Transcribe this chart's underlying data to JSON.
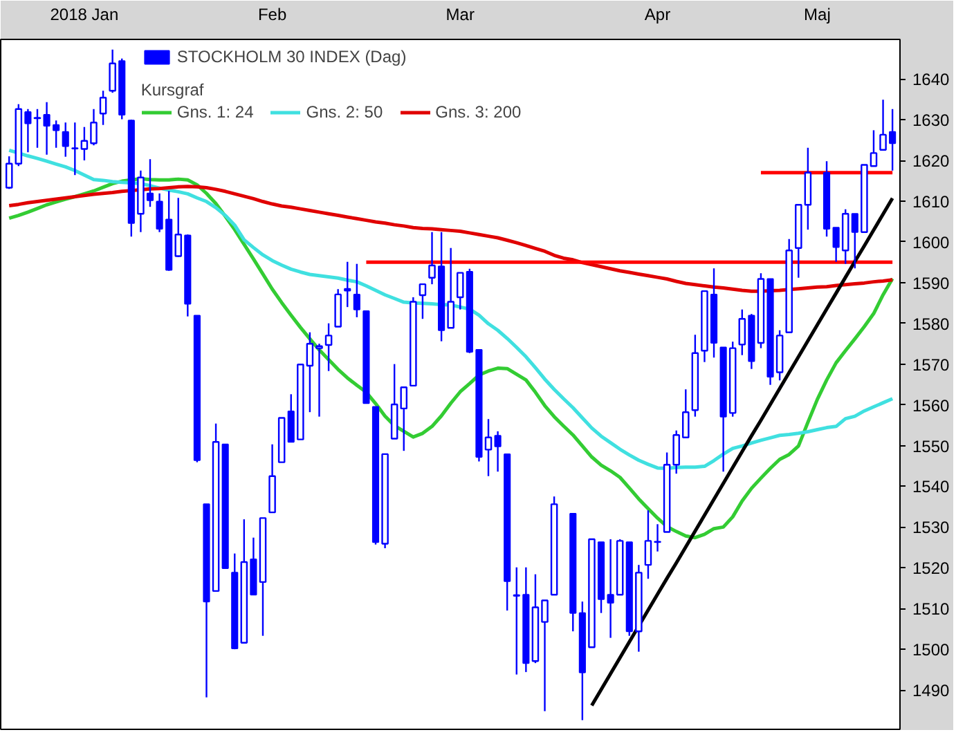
{
  "chart_data": {
    "type": "candlestick",
    "legend_title": "Kursgraf",
    "legend": "top left",
    "categories": [
      null,
      null,
      null,
      null,
      null,
      null,
      null,
      null,
      "2018 Jan",
      null,
      null,
      null,
      null,
      null,
      null,
      null,
      null,
      null,
      null,
      null,
      null,
      null,
      null,
      null,
      null,
      null,
      null,
      null,
      "Feb",
      null,
      null,
      null,
      null,
      null,
      null,
      null,
      null,
      null,
      null,
      null,
      null,
      null,
      null,
      null,
      null,
      null,
      null,
      null,
      "Mar",
      null,
      null,
      null,
      null,
      null,
      null,
      null,
      null,
      null,
      null,
      null,
      null,
      null,
      null,
      null,
      null,
      null,
      null,
      null,
      null,
      "Apr",
      null,
      null,
      null,
      null,
      null,
      null,
      null,
      null,
      null,
      null,
      null,
      null,
      null,
      null,
      null,
      null,
      "Maj",
      null,
      null,
      null,
      null,
      null,
      null,
      null,
      null
    ],
    "ylim": [
      1480,
      1649.7
    ],
    "yticks": [
      1490,
      1500,
      1510,
      1520,
      1530,
      1540,
      1550,
      1560,
      1570,
      1580,
      1590,
      1600,
      1610,
      1620,
      1630,
      1640
    ],
    "series": [
      {
        "type": "line",
        "name": "Gns. 1: 24",
        "color": "#33cc33",
        "values": [
          1605.8,
          1606.5,
          1607.3,
          1608.2,
          1609.1,
          1609.8,
          1610.5,
          1611.1,
          1611.8,
          1612.5,
          1613.4,
          1614.3,
          1614.9,
          1615.2,
          1615.5,
          1615.3,
          1615.2,
          1615.2,
          1615.4,
          1615.2,
          1614.0,
          1611.9,
          1609.4,
          1606.3,
          1603.0,
          1599.4,
          1595.8,
          1592.1,
          1588.4,
          1585.1,
          1582.0,
          1579.0,
          1576.2,
          1573.5,
          1571.1,
          1568.7,
          1566.6,
          1564.8,
          1563.1,
          1560.3,
          1557.2,
          1554.9,
          1553.5,
          1552.1,
          1553.0,
          1554.7,
          1557.3,
          1560.4,
          1563.2,
          1565.2,
          1567.3,
          1568.3,
          1569.0,
          1568.9,
          1567.5,
          1566.1,
          1563.1,
          1559.8,
          1557.1,
          1554.8,
          1552.6,
          1549.9,
          1547.2,
          1545.2,
          1543.8,
          1542.2,
          1539.6,
          1536.9,
          1534.5,
          1532.2,
          1530.1,
          1528.9,
          1527.8,
          1527.4,
          1528.2,
          1529.6,
          1530.0,
          1532.5,
          1536.4,
          1539.5,
          1542.0,
          1544.4,
          1546.6,
          1547.8,
          1549.9,
          1555.7,
          1561.3,
          1566.1,
          1570.3,
          1573.3,
          1576.2,
          1579.2,
          1582.4,
          1587.0,
          1591.0
        ]
      },
      {
        "type": "line",
        "name": "Gns. 2: 50",
        "color": "#40e0e0",
        "values": [
          1622.5,
          1621.8,
          1621.1,
          1620.5,
          1619.8,
          1619.1,
          1618.4,
          1617.5,
          1616.4,
          1615.3,
          1615.1,
          1614.8,
          1614.6,
          1614.5,
          1614.3,
          1613.8,
          1613.2,
          1612.7,
          1612.3,
          1611.8,
          1610.8,
          1609.9,
          1608.4,
          1606.5,
          1604.1,
          1600.5,
          1598.6,
          1596.8,
          1595.4,
          1594.3,
          1593.3,
          1592.6,
          1592.0,
          1591.7,
          1591.4,
          1591.1,
          1590.6,
          1590.2,
          1589.2,
          1588.1,
          1587.0,
          1586.1,
          1585.2,
          1585.0,
          1584.9,
          1584.8,
          1584.6,
          1584.5,
          1584.0,
          1583.5,
          1582.0,
          1579.9,
          1578.3,
          1576.3,
          1574.1,
          1571.8,
          1569.1,
          1566.3,
          1563.8,
          1561.5,
          1559.3,
          1556.8,
          1554.3,
          1552.3,
          1550.7,
          1549.1,
          1547.7,
          1546.4,
          1545.4,
          1544.5,
          1544.4,
          1544.6,
          1544.7,
          1544.7,
          1544.9,
          1546.3,
          1547.9,
          1549.3,
          1549.9,
          1550.6,
          1551.3,
          1551.9,
          1552.5,
          1552.7,
          1553.0,
          1553.4,
          1553.9,
          1554.4,
          1554.7,
          1556.6,
          1557.2,
          1558.5,
          1559.5,
          1560.5,
          1561.5
        ]
      },
      {
        "type": "line",
        "name": "Gns. 3: 200",
        "color": "#e00000",
        "values": [
          1608.9,
          1609.2,
          1609.6,
          1609.9,
          1610.2,
          1610.5,
          1610.8,
          1611.1,
          1611.4,
          1611.7,
          1611.9,
          1612.1,
          1612.4,
          1612.6,
          1612.8,
          1613.0,
          1613.1,
          1613.3,
          1613.5,
          1613.6,
          1613.5,
          1613.3,
          1612.9,
          1612.4,
          1611.8,
          1611.2,
          1610.6,
          1609.9,
          1609.3,
          1608.8,
          1608.5,
          1608.1,
          1607.7,
          1607.3,
          1606.9,
          1606.5,
          1606.1,
          1605.7,
          1605.3,
          1604.9,
          1604.6,
          1604.2,
          1603.9,
          1603.5,
          1603.3,
          1603.2,
          1603.0,
          1602.8,
          1602.6,
          1602.2,
          1601.8,
          1601.4,
          1601.0,
          1600.4,
          1599.8,
          1599.1,
          1598.4,
          1597.7,
          1596.7,
          1596.0,
          1595.6,
          1594.9,
          1594.4,
          1593.9,
          1593.4,
          1592.9,
          1592.5,
          1592.1,
          1591.7,
          1591.3,
          1590.9,
          1590.3,
          1589.8,
          1589.5,
          1589.2,
          1588.9,
          1588.7,
          1588.4,
          1588.1,
          1587.9,
          1587.9,
          1588.0,
          1588.1,
          1588.3,
          1588.5,
          1588.7,
          1588.9,
          1589.0,
          1589.3,
          1589.5,
          1589.7,
          1589.9,
          1590.2,
          1590.4,
          1590.7
        ]
      },
      {
        "type": "line",
        "color": "#ff0000",
        "values": [
          null,
          null,
          null,
          null,
          null,
          null,
          null,
          null,
          null,
          null,
          null,
          null,
          null,
          null,
          null,
          null,
          null,
          null,
          null,
          null,
          null,
          null,
          null,
          null,
          null,
          null,
          null,
          null,
          null,
          null,
          null,
          null,
          null,
          null,
          null,
          null,
          null,
          null,
          1595,
          1595,
          1595,
          1595,
          1595,
          1595,
          1595,
          1595,
          1595,
          1595,
          1595,
          1595,
          1595,
          1595,
          1595,
          1595,
          1595,
          1595,
          1595,
          1595,
          1595,
          1595,
          1595,
          1595,
          1595,
          1595,
          1595,
          1595,
          1595,
          1595,
          1595,
          1595,
          1595,
          1595,
          1595,
          1595,
          1595,
          1595,
          1595,
          1595,
          1595,
          1595,
          1595,
          1595,
          1595,
          1595,
          1595,
          1595,
          1595,
          1595,
          1595,
          1595,
          1595,
          1595,
          1595,
          1595,
          1595
        ]
      },
      {
        "type": "line",
        "color": "#ff0000",
        "values": [
          null,
          null,
          null,
          null,
          null,
          null,
          null,
          null,
          null,
          null,
          null,
          null,
          null,
          null,
          null,
          null,
          null,
          null,
          null,
          null,
          null,
          null,
          null,
          null,
          null,
          null,
          null,
          null,
          null,
          null,
          null,
          null,
          null,
          null,
          null,
          null,
          null,
          null,
          null,
          null,
          null,
          null,
          null,
          null,
          null,
          null,
          null,
          null,
          null,
          null,
          null,
          null,
          null,
          null,
          null,
          null,
          null,
          null,
          null,
          null,
          null,
          null,
          null,
          null,
          null,
          null,
          null,
          null,
          null,
          null,
          null,
          null,
          null,
          null,
          null,
          null,
          null,
          null,
          null,
          null,
          1617,
          1617,
          1617,
          1617,
          1617,
          1617,
          1617,
          1617,
          1617,
          1617,
          1617,
          1617,
          1617,
          1617,
          1617
        ]
      },
      {
        "type": "line",
        "color": "#000000",
        "values": [
          null,
          null,
          null,
          null,
          null,
          null,
          null,
          null,
          null,
          null,
          null,
          null,
          null,
          null,
          null,
          null,
          null,
          null,
          null,
          null,
          null,
          null,
          null,
          null,
          null,
          null,
          null,
          null,
          null,
          null,
          null,
          null,
          null,
          null,
          null,
          null,
          null,
          null,
          null,
          null,
          null,
          null,
          null,
          null,
          null,
          null,
          null,
          null,
          null,
          null,
          null,
          null,
          null,
          null,
          null,
          null,
          null,
          null,
          null,
          null,
          null,
          null,
          1486.2,
          1490.1,
          1494.0,
          1497.9,
          1501.8,
          1505.7,
          1509.6,
          1513.5,
          1517.4,
          1521.2,
          1525.1,
          1529.0,
          1532.9,
          1536.8,
          1540.7,
          1544.6,
          1548.5,
          1552.4,
          1556.2,
          1560.1,
          1564.0,
          1567.9,
          1571.8,
          1575.7,
          1579.6,
          1583.5,
          1587.4,
          1591.3,
          1595.2,
          1599.0,
          1602.9,
          1606.8,
          1610.7
        ]
      },
      {
        "name": "STOCKHOLM 30 INDEX (Dag)",
        "color": "#0000ff",
        "ohlc": [
          [
            1613.3,
            1621.0,
            1613.0,
            1619.2
          ],
          [
            1619.2,
            1633.8,
            1618.6,
            1632.6
          ],
          [
            1631.9,
            1632.6,
            1622.0,
            1629.1
          ],
          [
            1630.5,
            1632.6,
            1623.1,
            1630.3
          ],
          [
            1631.2,
            1634.3,
            1621.4,
            1628.5
          ],
          [
            1628.7,
            1629.8,
            1623.1,
            1627.4
          ],
          [
            1627.0,
            1629.3,
            1620.9,
            1623.5
          ],
          [
            1623.0,
            1629.3,
            1616.4,
            1622.9
          ],
          [
            1622.8,
            1628.2,
            1620.0,
            1624.8
          ],
          [
            1624.2,
            1632.6,
            1623.7,
            1629.3
          ],
          [
            1631.5,
            1637.1,
            1628.7,
            1635.4
          ],
          [
            1637.1,
            1647.2,
            1636.6,
            1643.8
          ],
          [
            1644.4,
            1645.0,
            1630.1,
            1631.2
          ],
          [
            1629.8,
            1630.0,
            1601.3,
            1604.6
          ],
          [
            1606.9,
            1617.5,
            1602.4,
            1615.8
          ],
          [
            1611.9,
            1620.3,
            1608.6,
            1610.2
          ],
          [
            1609.9,
            1611.9,
            1602.4,
            1603.2
          ],
          [
            1605.5,
            1612.5,
            1592.9,
            1593.1
          ],
          [
            1596.5,
            1610.8,
            1596.3,
            1601.8
          ],
          [
            1601.6,
            1601.8,
            1581.7,
            1584.8
          ],
          [
            1581.9,
            1581.9,
            1545.9,
            1546.4
          ],
          [
            1535.6,
            1535.6,
            1488.2,
            1511.7
          ],
          [
            1514.3,
            1555.4,
            1514.3,
            1550.9
          ],
          [
            1550.3,
            1550.3,
            1519.9,
            1519.9
          ],
          [
            1518.8,
            1523.5,
            1500.0,
            1500.2
          ],
          [
            1501.6,
            1531.9,
            1501.6,
            1521.4
          ],
          [
            1522.1,
            1527.4,
            1513.4,
            1513.4
          ],
          [
            1516.5,
            1532.2,
            1503.3,
            1532.2
          ],
          [
            1533.6,
            1550.3,
            1533.6,
            1542.5
          ],
          [
            1545.9,
            1556.8,
            1545.9,
            1556.8
          ],
          [
            1558.4,
            1562.6,
            1550.9,
            1550.9
          ],
          [
            1551.5,
            1569.9,
            1551.5,
            1569.9
          ],
          [
            1569.6,
            1577.8,
            1558.2,
            1575.0
          ],
          [
            1573.9,
            1575.0,
            1557.1,
            1574.4
          ],
          [
            1574.7,
            1580.0,
            1568.3,
            1577.0
          ],
          [
            1579.2,
            1588.4,
            1579.2,
            1587.1
          ],
          [
            1588.5,
            1595.1,
            1584.0,
            1588.0
          ],
          [
            1587.1,
            1594.6,
            1581.5,
            1583.4
          ],
          [
            1583.0,
            1583.0,
            1560.4,
            1560.4
          ],
          [
            1559.5,
            1559.5,
            1525.7,
            1526.3
          ],
          [
            1525.9,
            1547.9,
            1524.8,
            1547.9
          ],
          [
            1551.7,
            1570.0,
            1551.7,
            1560.1
          ],
          [
            1559.1,
            1564.3,
            1548.7,
            1564.3
          ],
          [
            1564.7,
            1586.4,
            1564.7,
            1585.3
          ],
          [
            1586.9,
            1589.6,
            1581.1,
            1589.6
          ],
          [
            1591.2,
            1602.4,
            1589.6,
            1594.2
          ],
          [
            1594.0,
            1602.4,
            1575.6,
            1578.3
          ],
          [
            1578.9,
            1598.5,
            1578.9,
            1585.3
          ],
          [
            1586.4,
            1592.4,
            1583.4,
            1592.4
          ],
          [
            1592.7,
            1593.4,
            1572.7,
            1573.0
          ],
          [
            1573.5,
            1573.5,
            1546.1,
            1547.2
          ],
          [
            1549.0,
            1556.5,
            1542.5,
            1552.0
          ],
          [
            1552.4,
            1553.5,
            1543.6,
            1549.8
          ],
          [
            1547.9,
            1547.9,
            1509.5,
            1516.7
          ],
          [
            1513.3,
            1520.1,
            1493.8,
            1513.1
          ],
          [
            1513.4,
            1520.1,
            1494.4,
            1496.6
          ],
          [
            1497.1,
            1518.4,
            1496.6,
            1510.3
          ],
          [
            1506.7,
            1512.0,
            1484.8,
            1512.0
          ],
          [
            1513.4,
            1537.5,
            1513.4,
            1535.6
          ],
          null,
          [
            1533.3,
            1533.3,
            1504.4,
            1508.9
          ],
          [
            1508.9,
            1511.7,
            1482.6,
            1494.3
          ],
          [
            1500.5,
            1527.0,
            1500.5,
            1527.0
          ],
          [
            1526.3,
            1526.3,
            1508.9,
            1512.3
          ],
          [
            1513.4,
            1527.0,
            1502.8,
            1511.4
          ],
          [
            1513.4,
            1527.0,
            1513.4,
            1526.6
          ],
          [
            1526.3,
            1526.3,
            1503.3,
            1504.4
          ],
          [
            1504.4,
            1520.7,
            1499.4,
            1518.8
          ],
          [
            1520.7,
            1534.1,
            1517.3,
            1526.6
          ],
          [
            1526.3,
            1530.7,
            1524.0,
            1526.4
          ],
          [
            1528.8,
            1548.3,
            1528.8,
            1545.3
          ],
          [
            1545.3,
            1553.7,
            1543.1,
            1552.6
          ],
          [
            1552.0,
            1563.8,
            1552.0,
            1558.2
          ],
          [
            1558.7,
            1577.2,
            1557.1,
            1572.7
          ],
          [
            1573.3,
            1587.9,
            1570.5,
            1587.9
          ],
          [
            1587.1,
            1593.5,
            1571.6,
            1575.2
          ],
          [
            1574.1,
            1574.1,
            1543.6,
            1557.1
          ],
          [
            1558.0,
            1575.5,
            1557.1,
            1573.9
          ],
          [
            1574.8,
            1583.4,
            1572.2,
            1581.1
          ],
          [
            1581.9,
            1582.3,
            1568.8,
            1570.7
          ],
          [
            1575.2,
            1592.3,
            1573.9,
            1590.9
          ],
          [
            1590.9,
            1590.9,
            1564.9,
            1566.9
          ],
          [
            1568.0,
            1578.3,
            1566.0,
            1577.0
          ],
          [
            1577.8,
            1600.7,
            1577.8,
            1597.9
          ],
          [
            1598.5,
            1609.1,
            1591.2,
            1609.1
          ],
          [
            1609.1,
            1623.1,
            1603.0,
            1617.0
          ],
          null,
          [
            1617.0,
            1619.8,
            1601.3,
            1603.2
          ],
          [
            1603.5,
            1603.5,
            1595.1,
            1598.7
          ],
          [
            1597.9,
            1608.0,
            1594.6,
            1606.9
          ],
          [
            1606.9,
            1606.9,
            1593.5,
            1602.4
          ],
          [
            1602.4,
            1618.9,
            1602.4,
            1618.9
          ],
          [
            1618.6,
            1627.4,
            1618.6,
            1621.8
          ],
          [
            1622.6,
            1634.9,
            1622.6,
            1626.3
          ],
          [
            1627.0,
            1632.6,
            1617.5,
            1624.2
          ]
        ]
      }
    ]
  }
}
